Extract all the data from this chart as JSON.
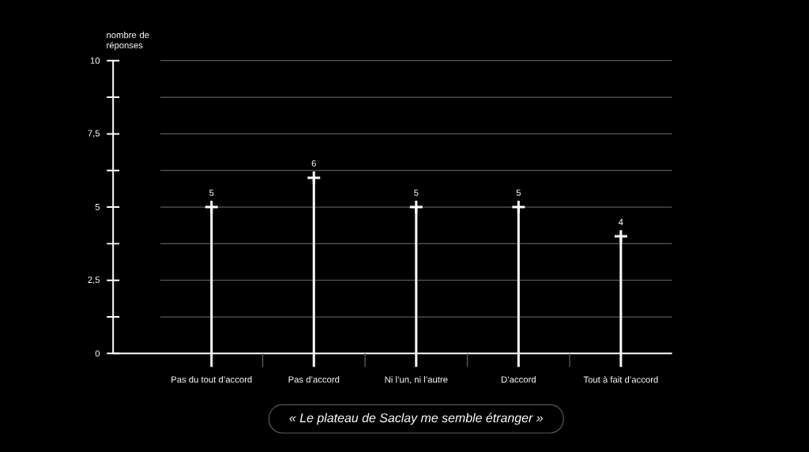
{
  "chart_data": {
    "type": "lollipop",
    "title": "« Le plateau de Saclay me semble étranger »",
    "ylabel": "nombre de réponses",
    "categories": [
      "Pas du tout d’accord",
      "Pas d’accord",
      "Ni l’un, ni l’autre",
      "D’accord",
      "Tout à fait d’accord"
    ],
    "values": [
      5,
      6,
      5,
      5,
      4
    ],
    "color": "#ffffff",
    "marker": "cross",
    "data_labels": true,
    "grid": "y",
    "ylim": [
      0,
      10
    ],
    "yticks": [
      0,
      {
        "value": 1.25,
        "label": null
      },
      {
        "value": 2.5,
        "label": "2,5"
      },
      {
        "value": 3.75,
        "label": null
      },
      5,
      {
        "value": 6.25,
        "label": null
      },
      {
        "value": 7.5,
        "label": "7,5"
      },
      {
        "value": 8.75,
        "label": null
      },
      10
    ]
  }
}
